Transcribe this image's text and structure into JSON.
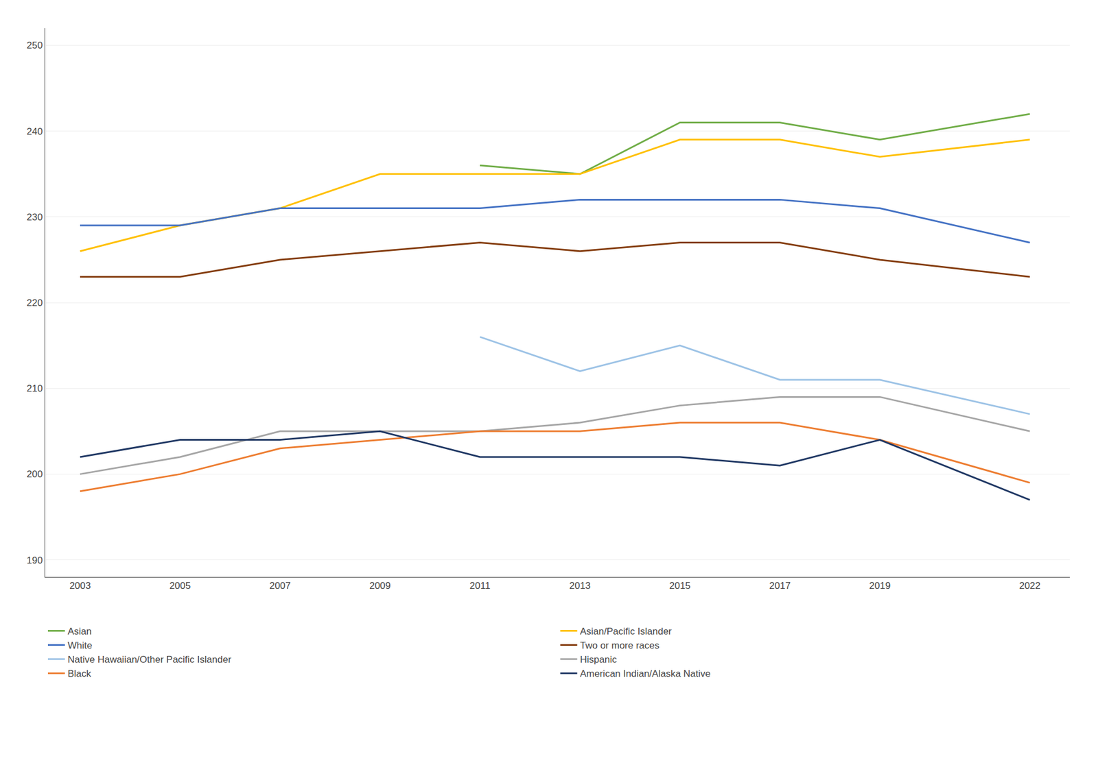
{
  "chart_data": {
    "type": "line",
    "x": [
      2003,
      2005,
      2007,
      2009,
      2011,
      2013,
      2015,
      2017,
      2019,
      2022
    ],
    "series": [
      {
        "name": "Asian",
        "color": "#70ad47",
        "values": [
          null,
          null,
          null,
          null,
          236,
          235,
          241,
          241,
          239,
          242
        ]
      },
      {
        "name": "Asian/Pacific Islander",
        "color": "#ffc000",
        "values": [
          226,
          229,
          231,
          235,
          235,
          235,
          239,
          239,
          237,
          239
        ]
      },
      {
        "name": "White",
        "color": "#4472c4",
        "values": [
          229,
          229,
          231,
          231,
          231,
          232,
          232,
          232,
          231,
          227
        ]
      },
      {
        "name": "Two or more races",
        "color": "#843c0c",
        "values": [
          223,
          223,
          225,
          226,
          227,
          226,
          227,
          227,
          225,
          223
        ]
      },
      {
        "name": "Native Hawaiian/Other Pacific Islander",
        "color": "#9dc3e6",
        "values": [
          null,
          null,
          null,
          null,
          216,
          212,
          215,
          211,
          211,
          207
        ]
      },
      {
        "name": "Hispanic",
        "color": "#a6a6a6",
        "values": [
          200,
          202,
          205,
          205,
          205,
          206,
          208,
          209,
          209,
          205
        ]
      },
      {
        "name": "Black",
        "color": "#ed7d31",
        "values": [
          198,
          200,
          203,
          204,
          205,
          205,
          206,
          206,
          204,
          199
        ]
      },
      {
        "name": "American Indian/Alaska Native",
        "color": "#203864",
        "values": [
          202,
          204,
          204,
          205,
          202,
          202,
          202,
          201,
          204,
          197
        ]
      }
    ],
    "xlim": [
      2002.3,
      2022.8
    ],
    "xticks": [
      2003,
      2005,
      2007,
      2009,
      2011,
      2013,
      2015,
      2017,
      2019,
      2022
    ],
    "ylim": [
      188,
      252
    ],
    "yticks": [
      190,
      200,
      210,
      220,
      230,
      240,
      250
    ],
    "grid": "y",
    "legend": "bottom"
  }
}
